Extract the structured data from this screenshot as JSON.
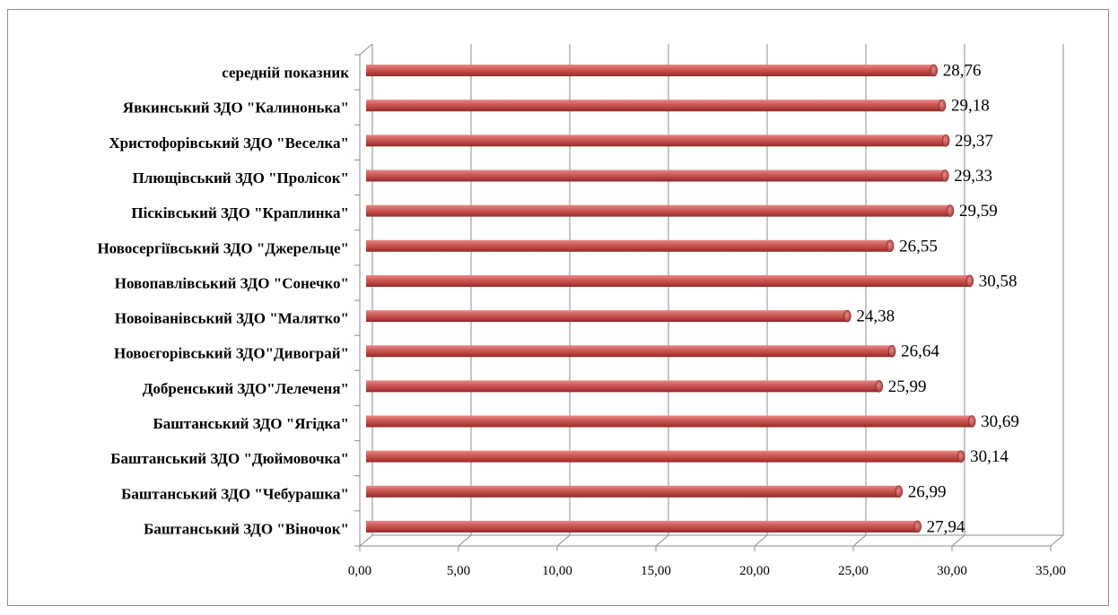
{
  "chart_data": {
    "type": "bar",
    "orientation": "horizontal",
    "categories": [
      "середній показник",
      "Явкинський ЗДО \"Калинонька\"",
      "Христофорівський ЗДО \"Веселка\"",
      "Плющівський ЗДО \"Пролісок\"",
      "Пісківський ЗДО \"Краплинка\"",
      "Новосергіївський ЗДО \"Джерельце\"",
      "Новопавлівський ЗДО \"Сонечко\"",
      "Новоіванівський ЗДО \"Малятко\"",
      "Новоєгорівський ЗДО\"Дивограй\"",
      "Добренський ЗДО\"Лелеченя\"",
      "Баштанський ЗДО \"Ягідка\"",
      "Баштанський ЗДО \"Дюймовочка\"",
      "Баштанський ЗДО \"Чебурашка\"",
      "Баштанський ЗДО \"Віночок\""
    ],
    "values": [
      28.76,
      29.18,
      29.37,
      29.33,
      29.59,
      26.55,
      30.58,
      24.38,
      26.64,
      25.99,
      30.69,
      30.14,
      26.99,
      27.94
    ],
    "value_labels": [
      "28,76",
      "29,18",
      "29,37",
      "29,33",
      "29,59",
      "26,55",
      "30,58",
      "24,38",
      "26,64",
      "25,99",
      "30,69",
      "30,14",
      "26,99",
      "27,94"
    ],
    "xlim": [
      0,
      35
    ],
    "x_ticks": [
      "0,00",
      "5,00",
      "10,00",
      "15,00",
      "20,00",
      "25,00",
      "30,00",
      "35,00"
    ],
    "grid": true,
    "bar_color": "#c0504d",
    "title": "",
    "xlabel": "",
    "ylabel": ""
  }
}
